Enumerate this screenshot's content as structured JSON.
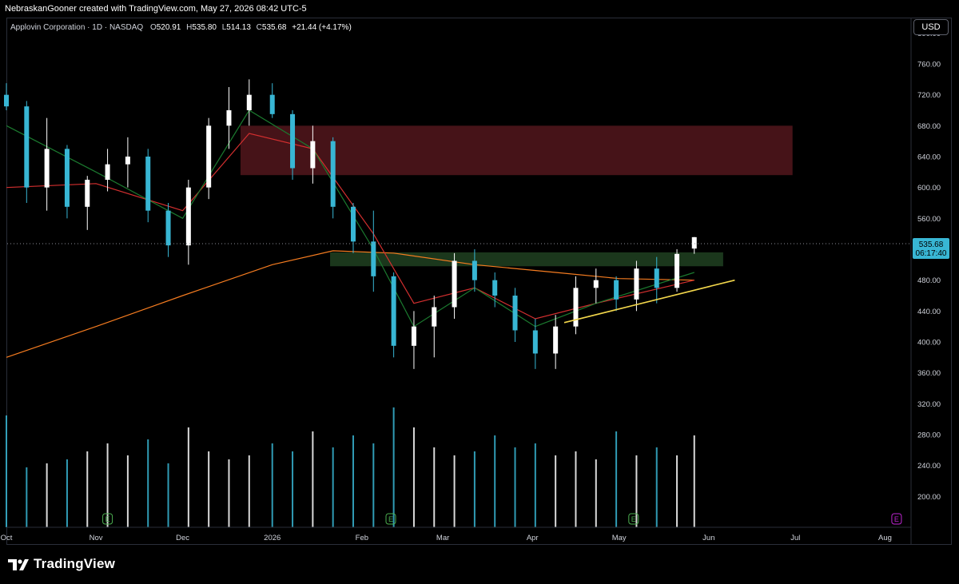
{
  "header": {
    "attribution": "NebraskanGooner created with TradingView.com, May 27, 2026 08:42 UTC-5"
  },
  "legend": {
    "symbol": "Applovin Corporation · 1D · NASDAQ",
    "o_label": "O",
    "o_value": "520.91",
    "h_label": "H",
    "h_value": "535.80",
    "l_label": "L",
    "l_value": "514.13",
    "c_label": "C",
    "c_value": "535.68",
    "change": "+21.44 (+4.17%)"
  },
  "currency_button": "USD",
  "price_tag": {
    "price": "535.68",
    "countdown": "06:17:40"
  },
  "footer": {
    "brand": "TradingView"
  },
  "colors": {
    "up": "#ffffff",
    "down": "#38b6d4",
    "sma_long": "#f57c20",
    "ema_mid": "#d32f2f",
    "ema_short": "#1b7a2f",
    "resistance_zone": "#4a1419",
    "support_zone": "#1c3a1d",
    "trendline": "#f2d64b",
    "volume": "#38b6d4",
    "earnings": "#4caf50",
    "earnings_upcoming": "#c026d3"
  },
  "chart_data": {
    "type": "candlestick",
    "title": "Applovin Corporation · 1D · NASDAQ",
    "y_axis": {
      "range": [
        160,
        820
      ],
      "ticks": [
        200,
        240,
        280,
        320,
        360,
        400,
        440,
        480,
        520,
        560,
        600,
        640,
        680,
        720,
        760,
        800
      ]
    },
    "x_axis": {
      "range": [
        "2025-10-01",
        "2026-08-10"
      ],
      "labels": [
        {
          "text": "Oct",
          "date": "2025-10-01"
        },
        {
          "text": "Nov",
          "date": "2025-11-01"
        },
        {
          "text": "Dec",
          "date": "2025-12-01"
        },
        {
          "text": "2026",
          "date": "2026-01-01"
        },
        {
          "text": "Feb",
          "date": "2026-02-01"
        },
        {
          "text": "Mar",
          "date": "2026-03-01"
        },
        {
          "text": "Apr",
          "date": "2026-04-01"
        },
        {
          "text": "May",
          "date": "2026-05-01"
        },
        {
          "text": "Jun",
          "date": "2026-06-01"
        },
        {
          "text": "Jul",
          "date": "2026-07-01"
        },
        {
          "text": "Aug",
          "date": "2026-08-01"
        }
      ]
    },
    "candles": [
      {
        "date": "2025-10-01",
        "o": 720,
        "h": 735,
        "l": 700,
        "c": 705
      },
      {
        "date": "2025-10-08",
        "o": 705,
        "h": 712,
        "l": 580,
        "c": 600
      },
      {
        "date": "2025-10-15",
        "o": 600,
        "h": 690,
        "l": 570,
        "c": 650
      },
      {
        "date": "2025-10-22",
        "o": 650,
        "h": 655,
        "l": 560,
        "c": 575
      },
      {
        "date": "2025-10-29",
        "o": 575,
        "h": 615,
        "l": 545,
        "c": 610
      },
      {
        "date": "2025-11-05",
        "o": 610,
        "h": 650,
        "l": 595,
        "c": 630
      },
      {
        "date": "2025-11-12",
        "o": 630,
        "h": 665,
        "l": 600,
        "c": 640
      },
      {
        "date": "2025-11-19",
        "o": 640,
        "h": 650,
        "l": 555,
        "c": 570
      },
      {
        "date": "2025-11-26",
        "o": 570,
        "h": 580,
        "l": 510,
        "c": 525
      },
      {
        "date": "2025-12-03",
        "o": 525,
        "h": 610,
        "l": 500,
        "c": 600
      },
      {
        "date": "2025-12-10",
        "o": 600,
        "h": 690,
        "l": 585,
        "c": 680
      },
      {
        "date": "2025-12-17",
        "o": 680,
        "h": 730,
        "l": 650,
        "c": 700
      },
      {
        "date": "2025-12-24",
        "o": 700,
        "h": 740,
        "l": 680,
        "c": 720
      },
      {
        "date": "2026-01-01",
        "o": 720,
        "h": 735,
        "l": 690,
        "c": 695
      },
      {
        "date": "2026-01-08",
        "o": 695,
        "h": 700,
        "l": 610,
        "c": 625
      },
      {
        "date": "2026-01-15",
        "o": 625,
        "h": 680,
        "l": 605,
        "c": 660
      },
      {
        "date": "2026-01-22",
        "o": 660,
        "h": 665,
        "l": 560,
        "c": 575
      },
      {
        "date": "2026-01-29",
        "o": 575,
        "h": 580,
        "l": 515,
        "c": 530
      },
      {
        "date": "2026-02-05",
        "o": 530,
        "h": 570,
        "l": 465,
        "c": 485
      },
      {
        "date": "2026-02-12",
        "o": 485,
        "h": 490,
        "l": 380,
        "c": 395
      },
      {
        "date": "2026-02-19",
        "o": 395,
        "h": 440,
        "l": 365,
        "c": 420
      },
      {
        "date": "2026-02-26",
        "o": 420,
        "h": 460,
        "l": 380,
        "c": 445
      },
      {
        "date": "2026-03-05",
        "o": 445,
        "h": 515,
        "l": 430,
        "c": 505
      },
      {
        "date": "2026-03-12",
        "o": 505,
        "h": 520,
        "l": 465,
        "c": 480
      },
      {
        "date": "2026-03-19",
        "o": 480,
        "h": 490,
        "l": 445,
        "c": 460
      },
      {
        "date": "2026-03-26",
        "o": 460,
        "h": 470,
        "l": 400,
        "c": 415
      },
      {
        "date": "2026-04-02",
        "o": 415,
        "h": 430,
        "l": 365,
        "c": 385
      },
      {
        "date": "2026-04-09",
        "o": 385,
        "h": 435,
        "l": 365,
        "c": 420
      },
      {
        "date": "2026-04-16",
        "o": 420,
        "h": 485,
        "l": 410,
        "c": 470
      },
      {
        "date": "2026-04-23",
        "o": 470,
        "h": 495,
        "l": 450,
        "c": 480
      },
      {
        "date": "2026-04-30",
        "o": 480,
        "h": 485,
        "l": 440,
        "c": 455
      },
      {
        "date": "2026-05-07",
        "o": 455,
        "h": 505,
        "l": 440,
        "c": 495
      },
      {
        "date": "2026-05-14",
        "o": 495,
        "h": 510,
        "l": 450,
        "c": 470
      },
      {
        "date": "2026-05-21",
        "o": 470,
        "h": 520,
        "l": 465,
        "c": 514
      },
      {
        "date": "2026-05-27",
        "o": 520.91,
        "h": 535.8,
        "l": 514.13,
        "c": 535.68
      }
    ],
    "ema_short": {
      "name": "",
      "points": [
        [
          "2025-10-01",
          680
        ],
        [
          "2025-11-01",
          620
        ],
        [
          "2025-12-01",
          560
        ],
        [
          "2025-12-24",
          700
        ],
        [
          "2026-01-15",
          650
        ],
        [
          "2026-02-05",
          520
        ],
        [
          "2026-02-19",
          420
        ],
        [
          "2026-03-12",
          470
        ],
        [
          "2026-04-02",
          420
        ],
        [
          "2026-04-23",
          450
        ],
        [
          "2026-05-27",
          490
        ]
      ]
    },
    "ema_mid": {
      "name": "",
      "points": [
        [
          "2025-10-01",
          600
        ],
        [
          "2025-11-01",
          605
        ],
        [
          "2025-12-01",
          570
        ],
        [
          "2025-12-24",
          670
        ],
        [
          "2026-01-15",
          650
        ],
        [
          "2026-02-05",
          540
        ],
        [
          "2026-02-19",
          450
        ],
        [
          "2026-03-12",
          470
        ],
        [
          "2026-04-02",
          430
        ],
        [
          "2026-04-23",
          450
        ],
        [
          "2026-05-27",
          480
        ]
      ]
    },
    "sma_long": {
      "name": "",
      "points": [
        [
          "2025-10-01",
          380
        ],
        [
          "2025-11-01",
          420
        ],
        [
          "2025-12-01",
          460
        ],
        [
          "2026-01-01",
          500
        ],
        [
          "2026-01-22",
          518
        ],
        [
          "2026-02-12",
          515
        ],
        [
          "2026-03-12",
          500
        ],
        [
          "2026-04-09",
          490
        ],
        [
          "2026-05-01",
          482
        ],
        [
          "2026-05-27",
          480
        ]
      ]
    },
    "zones": [
      {
        "name": "resistance",
        "from": "2025-12-21",
        "to": "2026-06-30",
        "y_low": 616,
        "y_high": 680
      },
      {
        "name": "support",
        "from": "2026-01-21",
        "to": "2026-06-06",
        "y_low": 498,
        "y_high": 516
      }
    ],
    "trendline": {
      "from": {
        "date": "2026-04-12",
        "value": 425
      },
      "to": {
        "date": "2026-06-10",
        "value": 480
      }
    },
    "volume": {
      "values": [
        280,
        150,
        160,
        170,
        190,
        210,
        180,
        220,
        160,
        250,
        190,
        170,
        180,
        210,
        190,
        240,
        200,
        230,
        210,
        300,
        250,
        200,
        180,
        190,
        230,
        200,
        210,
        180,
        190,
        170,
        240,
        180,
        200,
        180,
        230
      ]
    },
    "earnings": [
      "2025-11-05",
      "2026-02-11",
      "2026-05-06"
    ],
    "earnings_upcoming": [
      "2026-08-05"
    ]
  }
}
